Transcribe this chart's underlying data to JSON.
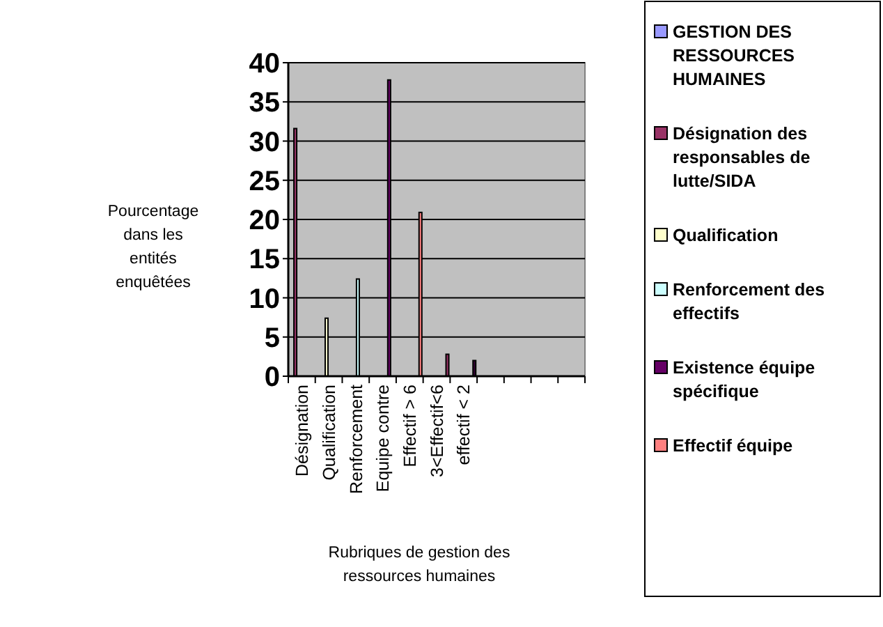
{
  "chart_data": {
    "type": "bar",
    "xlabel": "Rubriques de gestion des ressources humaines",
    "ylabel": "Pourcentage dans les entités enquêtées",
    "categories": [
      "Désignation",
      "Qualification",
      "Renforcement",
      "Equipe contre",
      "Effectif > 6",
      "3<Effectif<6",
      "effectif < 2",
      null,
      null,
      null,
      null
    ],
    "series": [
      {
        "name": "GESTION DES RESSOURCES HUMAINES",
        "color": "#9999ff",
        "values": [
          null,
          null,
          null,
          null,
          null,
          null,
          null,
          null,
          null,
          null,
          null
        ]
      },
      {
        "name": "Désignation des responsables de lutte/SIDA",
        "color": "#993366",
        "values": [
          31.6,
          null,
          null,
          null,
          null,
          null,
          null,
          null,
          null,
          null,
          null
        ]
      },
      {
        "name": "Qualification",
        "color": "#ffffcc",
        "values": [
          null,
          7.4,
          null,
          null,
          null,
          null,
          null,
          null,
          null,
          null,
          null
        ]
      },
      {
        "name": "Renforcement des effectifs",
        "color": "#ccffff",
        "values": [
          null,
          null,
          12.4,
          null,
          null,
          null,
          null,
          null,
          null,
          null,
          null
        ]
      },
      {
        "name": "Existence équipe spécifique",
        "color": "#660066",
        "values": [
          null,
          null,
          null,
          37.8,
          null,
          null,
          null,
          null,
          null,
          null,
          null
        ]
      },
      {
        "name": "Effectif équipe",
        "color": "#ff8080",
        "colors": [
          null,
          null,
          null,
          null,
          "#ff8080",
          "#993366",
          "#330033",
          null,
          null,
          null,
          null
        ],
        "values": [
          null,
          null,
          null,
          null,
          20.9,
          2.8,
          2.0,
          null,
          null,
          null,
          null
        ]
      }
    ],
    "ylim": [
      0,
      40
    ],
    "yticks": [
      0,
      5,
      10,
      15,
      20,
      25,
      30,
      35,
      40
    ],
    "grid": "y",
    "legend": "right"
  }
}
